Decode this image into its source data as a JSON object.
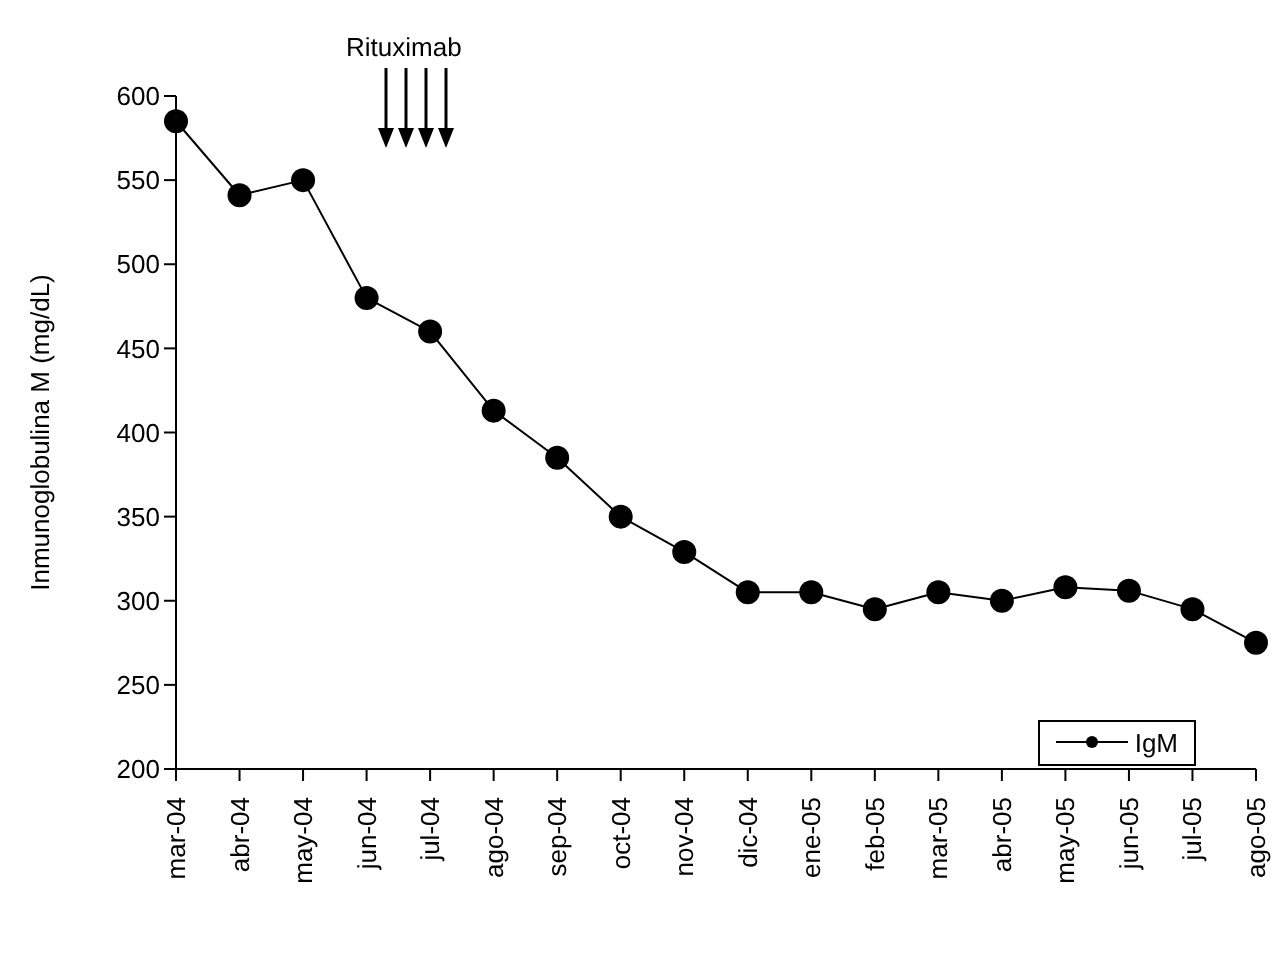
{
  "chart_data": {
    "type": "line",
    "ylabel": "Inmunoglobulina M (mg/dL)",
    "categories": [
      "mar-04",
      "abr-04",
      "may-04",
      "jun-04",
      "jul-04",
      "ago-04",
      "sep-04",
      "oct-04",
      "nov-04",
      "dic-04",
      "ene-05",
      "feb-05",
      "mar-05",
      "abr-05",
      "may-05",
      "jun-05",
      "jul-05",
      "ago-05"
    ],
    "series": [
      {
        "name": "IgM",
        "color": "#000000",
        "values": [
          585,
          541,
          550,
          480,
          460,
          413,
          385,
          350,
          329,
          305,
          305,
          295,
          305,
          300,
          308,
          306,
          295,
          275
        ]
      }
    ],
    "ylim": [
      200,
      600
    ],
    "yticks": [
      200,
      250,
      300,
      350,
      400,
      450,
      500,
      550,
      600
    ],
    "legend": "bottom right",
    "marker": "circle",
    "line_style": "solid",
    "annotations": [
      "Rituximab"
    ]
  }
}
